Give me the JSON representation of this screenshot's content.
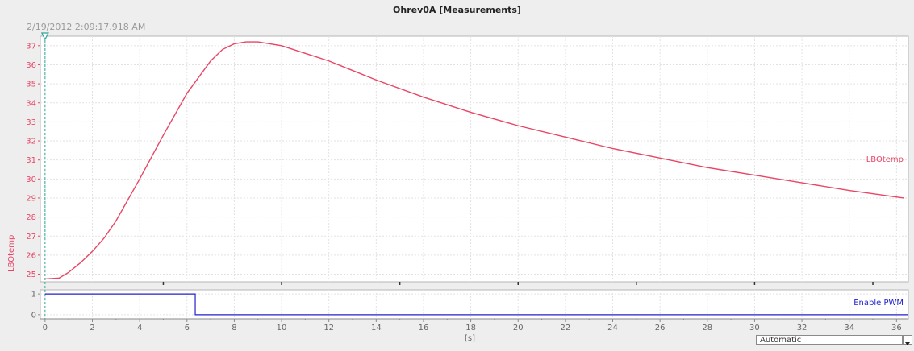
{
  "window": {
    "title": "Ohrev0A [Measurements]",
    "timestamp": "2/19/2012  2:09:17.918 AM",
    "accent_color": "#e84665",
    "binary_color": "#2222cc"
  },
  "chart_data": [
    {
      "type": "line",
      "title": "Ohrev0A [Measurements]",
      "ylabel": "LBOtemp",
      "xlabel": "[s]",
      "xlim": [
        -0.2,
        36.5
      ],
      "ylim": [
        24.6,
        37.5
      ],
      "yticks": [
        25,
        26,
        27,
        28,
        29,
        30,
        31,
        32,
        33,
        34,
        35,
        36,
        37
      ],
      "xticks": [
        0,
        2,
        4,
        6,
        8,
        10,
        12,
        14,
        16,
        18,
        20,
        22,
        24,
        26,
        28,
        30,
        32,
        34,
        36
      ],
      "grid": true,
      "series": [
        {
          "name": "LBOtemp",
          "color": "#e84665",
          "x": [
            0,
            0.6,
            1,
            1.5,
            2,
            2.5,
            3,
            4,
            5,
            6,
            7,
            7.5,
            8,
            8.5,
            9,
            9.5,
            10,
            11,
            12,
            13,
            14,
            16,
            18,
            20,
            22,
            24,
            26,
            28,
            30,
            32,
            34,
            36.3
          ],
          "y": [
            24.75,
            24.8,
            25.1,
            25.6,
            26.2,
            26.9,
            27.8,
            30.0,
            32.3,
            34.5,
            36.2,
            36.8,
            37.1,
            37.2,
            37.2,
            37.1,
            37.0,
            36.6,
            36.2,
            35.7,
            35.2,
            34.3,
            33.5,
            32.8,
            32.2,
            31.6,
            31.1,
            30.6,
            30.2,
            29.8,
            29.4,
            29.0
          ]
        }
      ]
    },
    {
      "type": "line",
      "xlabel": "[s]",
      "xlim": [
        -0.2,
        36.5
      ],
      "ylim": [
        -0.2,
        1.2
      ],
      "yticks": [
        0,
        1
      ],
      "grid": true,
      "series": [
        {
          "name": "Enable PWM",
          "color": "#2222cc",
          "x": [
            0,
            6.35,
            6.35,
            36.5
          ],
          "y": [
            1,
            1,
            0,
            0
          ]
        }
      ]
    }
  ],
  "controls": {
    "time_mode": "Automatic"
  }
}
